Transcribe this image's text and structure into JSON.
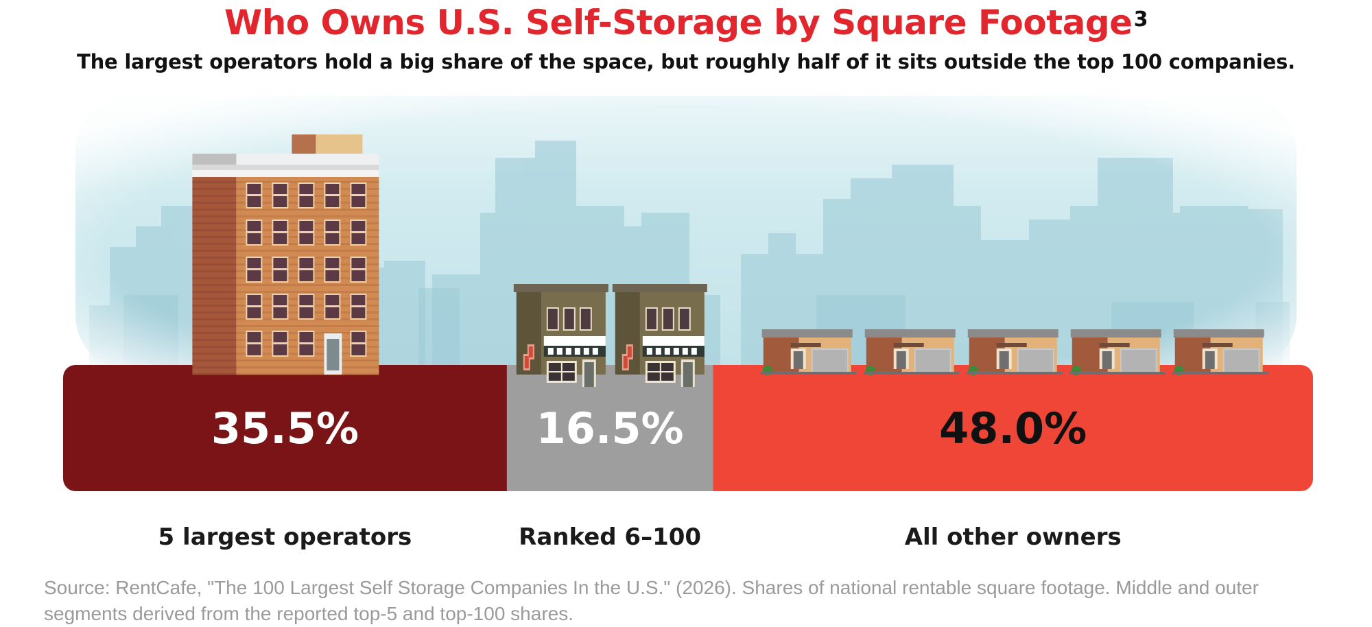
{
  "title": "Who Owns U.S. Self-Storage by Square Footage",
  "title_footnote": "3",
  "subtitle": "The largest operators hold a big share of the space, but roughly half of it sits outside the top 100 companies.",
  "source": "Source: RentCafe, \"The 100 Largest Self Storage Companies In the U.S.\" (2026). Shares of national rentable square footage. Middle and outer segments derived from the reported top-5 and top-100 shares.",
  "chart_data": {
    "type": "bar",
    "orientation": "horizontal-stacked",
    "categories": [
      "5 largest operators",
      "Ranked 6–100",
      "All other owners"
    ],
    "values": [
      35.5,
      16.5,
      48.0
    ],
    "value_labels": [
      "35.5%",
      "16.5%",
      "48.0%"
    ],
    "unit": "%",
    "colors": [
      "#7b1416",
      "#9e9e9e",
      "#f04637"
    ],
    "label_colors": [
      "#ffffff",
      "#ffffff",
      "#111111"
    ],
    "icons": [
      "high-rise-building-icon",
      "shop-building-icon",
      "storage-unit-icon"
    ],
    "icon_counts": [
      1,
      2,
      5
    ]
  }
}
